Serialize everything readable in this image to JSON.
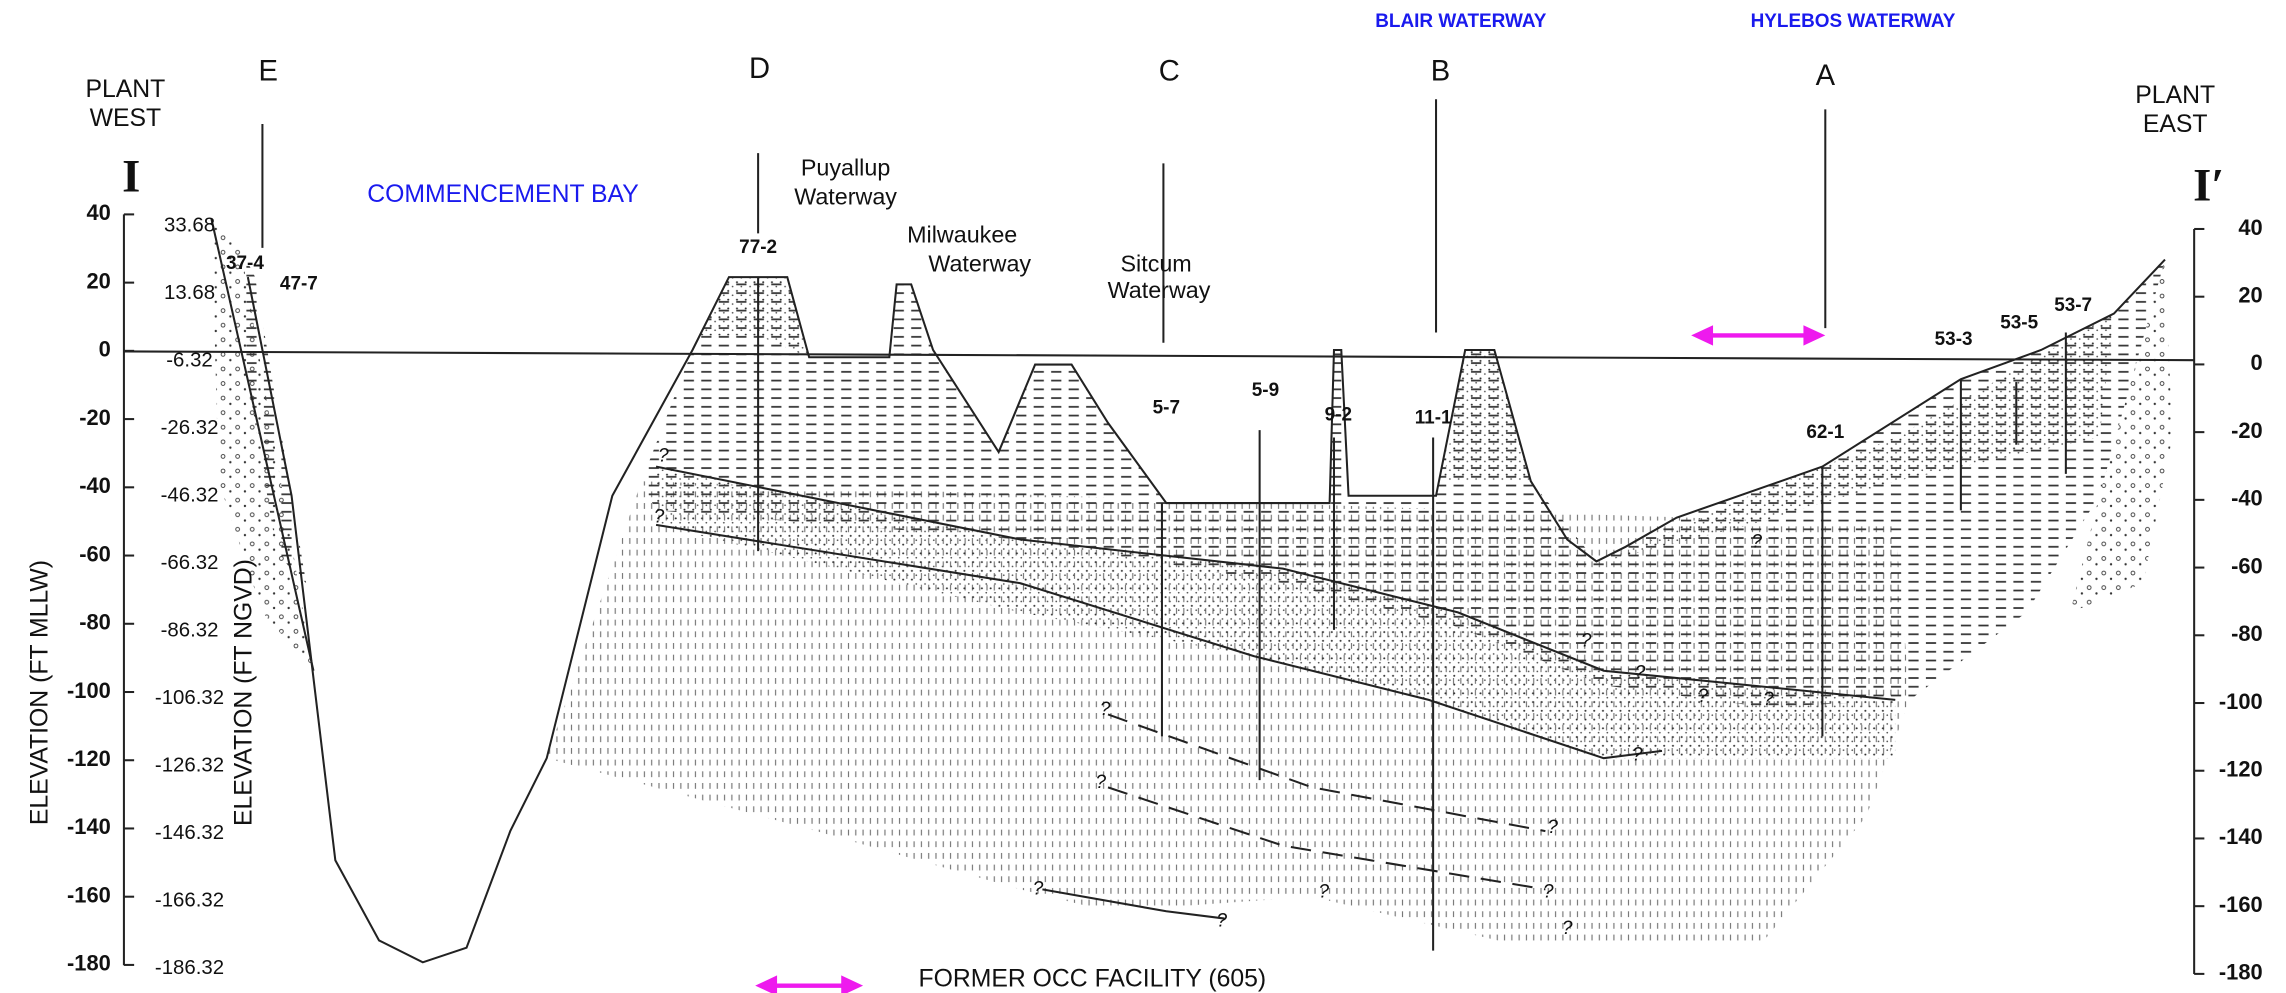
{
  "diagram": {
    "plant_west": [
      "PLANT",
      "WEST"
    ],
    "plant_east": [
      "PLANT",
      "EAST"
    ],
    "section_start": "I",
    "section_end": "I′",
    "locations": {
      "commencement_bay": "COMMENCEMENT BAY",
      "blair_waterway": "BLAIR WATERWAY",
      "hylebos_waterway": "HYLEBOS WATERWAY"
    },
    "section_letters": [
      "E",
      "D",
      "C",
      "B",
      "A"
    ],
    "waterways": {
      "puyallup": [
        "Puyallup",
        "Waterway"
      ],
      "milwaukee": [
        "Milwaukee",
        "Waterway"
      ],
      "sitcum": [
        "Sitcum",
        "Waterway"
      ]
    },
    "borings": [
      "37-4",
      "47-7",
      "77-2",
      "5-7",
      "5-9",
      "9-2",
      "11-1",
      "62-1",
      "53-3",
      "53-5",
      "53-7"
    ],
    "uncertain_marker": "?",
    "left_axis_label": "ELEVATION (FT MLLW)",
    "left_axis_ticks": [
      40,
      20,
      0,
      -20,
      -40,
      -60,
      -80,
      -100,
      -120,
      -140,
      -160,
      -180
    ],
    "ngvd_axis_label": "ELEVATION (FT NGVD)",
    "ngvd_axis_ticks": [
      33.68,
      13.68,
      -6.32,
      -26.32,
      -46.32,
      -66.32,
      -86.32,
      -106.32,
      -126.32,
      -146.32,
      -166.32,
      -186.32
    ],
    "right_axis_ticks": [
      40,
      20,
      0,
      -20,
      -40,
      -60,
      -80,
      -100,
      -120,
      -140,
      -160,
      -180
    ],
    "facility_label": "FORMER OCC FACILITY (605)"
  }
}
